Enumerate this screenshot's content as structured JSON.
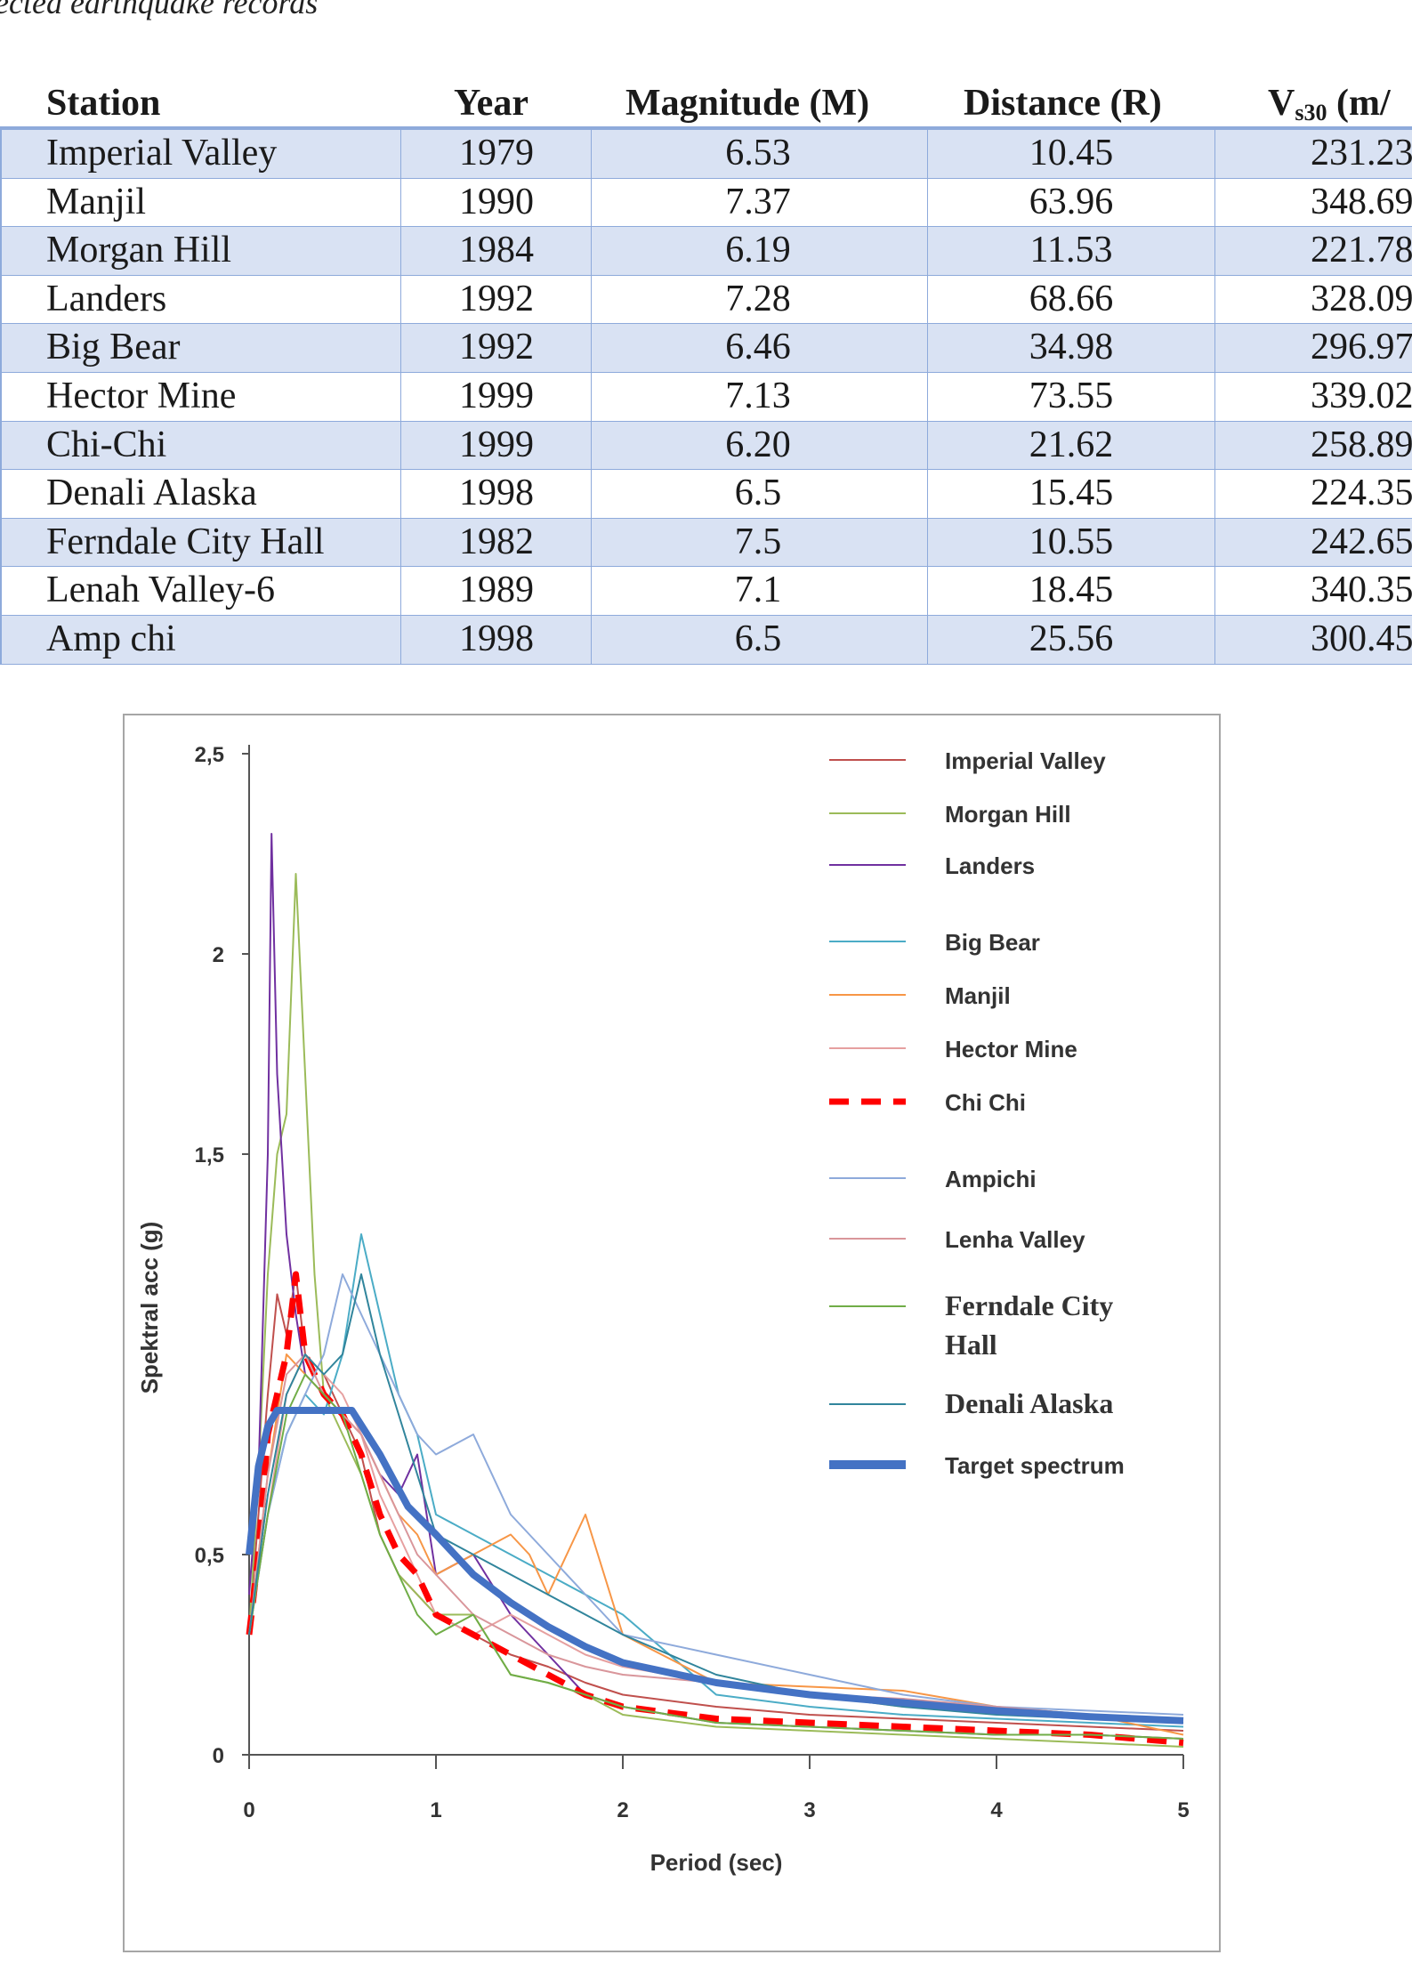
{
  "caption": "ected earthquake records",
  "table": {
    "headers": {
      "station": "Station",
      "year": "Year",
      "magnitude": "Magnitude (M)",
      "distance": "Distance (R)",
      "vs30_base": "V",
      "vs30_sub": "s30",
      "vs30_unit": "(m/"
    },
    "rows": [
      {
        "station": "Imperial Valley",
        "year": "1979",
        "magnitude": "6.53",
        "distance": "10.45",
        "vs30": "231.23"
      },
      {
        "station": "Manjil",
        "year": "1990",
        "magnitude": "7.37",
        "distance": "63.96",
        "vs30": "348.69"
      },
      {
        "station": "Morgan Hill",
        "year": "1984",
        "magnitude": "6.19",
        "distance": "11.53",
        "vs30": "221.78"
      },
      {
        "station": "Landers",
        "year": "1992",
        "magnitude": "7.28",
        "distance": "68.66",
        "vs30": "328.09"
      },
      {
        "station": "Big Bear",
        "year": "1992",
        "magnitude": "6.46",
        "distance": "34.98",
        "vs30": "296.97"
      },
      {
        "station": "Hector Mine",
        "year": "1999",
        "magnitude": "7.13",
        "distance": "73.55",
        "vs30": "339.02"
      },
      {
        "station": "Chi-Chi",
        "year": "1999",
        "magnitude": "6.20",
        "distance": "21.62",
        "vs30": "258.89"
      },
      {
        "station": "Denali Alaska",
        "year": "1998",
        "magnitude": "6.5",
        "distance": "15.45",
        "vs30": "224.35"
      },
      {
        "station": "Ferndale City Hall",
        "year": "1982",
        "magnitude": "7.5",
        "distance": "10.55",
        "vs30": "242.65"
      },
      {
        "station": "Lenah Valley-6",
        "year": "1989",
        "magnitude": "7.1",
        "distance": "18.45",
        "vs30": "340.35"
      },
      {
        "station": "Amp chi",
        "year": "1998",
        "magnitude": "6.5",
        "distance": "25.56",
        "vs30": "300.45"
      }
    ]
  },
  "chart_data": {
    "type": "line",
    "title": "",
    "xlabel": "Period (sec)",
    "ylabel": "Spektral acc (g)",
    "xlim": [
      0,
      5
    ],
    "ylim": [
      0,
      2.5
    ],
    "x_ticks": [
      "0",
      "1",
      "2",
      "3",
      "4",
      "5"
    ],
    "y_ticks": [
      "0",
      "0,5",
      "1,5",
      "2",
      "2,5"
    ],
    "grid": false,
    "legend_position": "top-right",
    "series": [
      {
        "name": "Imperial Valley",
        "color": "#c0504d",
        "style": "solid",
        "x": [
          0,
          0.05,
          0.1,
          0.15,
          0.2,
          0.25,
          0.3,
          0.4,
          0.5,
          0.6,
          0.7,
          0.8,
          1.0,
          1.2,
          1.4,
          1.6,
          1.8,
          2.0,
          2.5,
          3.0,
          3.5,
          4.0,
          4.5,
          5.0
        ],
        "y": [
          0.3,
          0.6,
          0.9,
          1.15,
          1.05,
          1.2,
          1.0,
          0.95,
          0.85,
          0.75,
          0.55,
          0.45,
          0.35,
          0.3,
          0.25,
          0.22,
          0.18,
          0.15,
          0.12,
          0.1,
          0.09,
          0.08,
          0.07,
          0.06
        ]
      },
      {
        "name": "Morgan Hill",
        "color": "#9bbb59",
        "style": "solid",
        "x": [
          0,
          0.05,
          0.1,
          0.15,
          0.2,
          0.25,
          0.3,
          0.35,
          0.4,
          0.5,
          0.6,
          0.7,
          0.8,
          0.9,
          1.0,
          1.2,
          1.4,
          1.6,
          1.8,
          2.0,
          2.5,
          3.0,
          3.5,
          4.0,
          4.5,
          5.0
        ],
        "y": [
          0.3,
          0.7,
          1.2,
          1.5,
          1.6,
          2.2,
          1.7,
          1.2,
          0.9,
          0.8,
          0.7,
          0.55,
          0.45,
          0.4,
          0.35,
          0.35,
          0.2,
          0.18,
          0.15,
          0.1,
          0.07,
          0.06,
          0.05,
          0.04,
          0.03,
          0.02
        ]
      },
      {
        "name": "Landers",
        "color": "#7030a0",
        "style": "solid",
        "x": [
          0,
          0.05,
          0.1,
          0.12,
          0.15,
          0.2,
          0.25,
          0.3,
          0.4,
          0.5,
          0.6,
          0.7,
          0.8,
          0.9,
          1.0,
          1.2,
          1.4,
          1.6,
          1.8,
          2.0,
          2.5,
          3.0,
          3.5,
          4.0,
          4.5,
          5.0
        ],
        "y": [
          0.4,
          0.7,
          1.5,
          2.3,
          1.7,
          1.3,
          1.1,
          0.95,
          0.9,
          0.85,
          0.8,
          0.7,
          0.65,
          0.75,
          0.45,
          0.5,
          0.35,
          0.25,
          0.15,
          0.12,
          0.08,
          0.07,
          0.06,
          0.05,
          0.05,
          0.04
        ]
      },
      {
        "name": "Big Bear",
        "color": "#4bacc6",
        "style": "solid",
        "x": [
          0,
          0.1,
          0.2,
          0.3,
          0.4,
          0.5,
          0.6,
          0.7,
          0.8,
          0.9,
          1.0,
          1.2,
          1.4,
          1.6,
          1.8,
          2.0,
          2.5,
          3.0,
          3.5,
          4.0,
          4.5,
          5.0
        ],
        "y": [
          0.3,
          0.6,
          0.8,
          0.9,
          0.85,
          1.0,
          1.3,
          1.1,
          0.9,
          0.8,
          0.6,
          0.55,
          0.5,
          0.45,
          0.4,
          0.35,
          0.15,
          0.12,
          0.1,
          0.09,
          0.08,
          0.07
        ]
      },
      {
        "name": "Manjil",
        "color": "#f79646",
        "style": "solid",
        "x": [
          0,
          0.1,
          0.2,
          0.3,
          0.4,
          0.5,
          0.6,
          0.7,
          0.8,
          0.9,
          1.0,
          1.2,
          1.4,
          1.5,
          1.6,
          1.7,
          1.8,
          1.9,
          2.0,
          2.5,
          3.0,
          3.5,
          4.0,
          4.5,
          5.0
        ],
        "y": [
          0.3,
          0.7,
          1.0,
          0.95,
          0.9,
          0.85,
          0.8,
          0.7,
          0.6,
          0.55,
          0.45,
          0.5,
          0.55,
          0.5,
          0.4,
          0.5,
          0.6,
          0.45,
          0.3,
          0.18,
          0.17,
          0.16,
          0.12,
          0.1,
          0.05
        ]
      },
      {
        "name": "Hector Mine",
        "color": "#e6a0a0",
        "style": "solid",
        "x": [
          0,
          0.1,
          0.2,
          0.3,
          0.4,
          0.5,
          0.6,
          0.7,
          0.8,
          0.9,
          1.0,
          1.2,
          1.4,
          1.6,
          1.8,
          2.0,
          2.5,
          3.0,
          3.5,
          4.0,
          4.5,
          5.0
        ],
        "y": [
          0.3,
          0.6,
          0.9,
          1.0,
          0.95,
          0.9,
          0.8,
          0.65,
          0.55,
          0.45,
          0.35,
          0.3,
          0.35,
          0.3,
          0.25,
          0.22,
          0.18,
          0.15,
          0.12,
          0.11,
          0.1,
          0.09
        ]
      },
      {
        "name": "Chi Chi",
        "color": "#ff0000",
        "style": "dashed",
        "x": [
          0,
          0.05,
          0.1,
          0.15,
          0.2,
          0.25,
          0.3,
          0.35,
          0.4,
          0.5,
          0.6,
          0.7,
          0.8,
          0.9,
          1.0,
          1.2,
          1.4,
          1.6,
          1.8,
          2.0,
          2.5,
          3.0,
          3.5,
          4.0,
          4.5,
          5.0
        ],
        "y": [
          0.3,
          0.5,
          0.8,
          0.9,
          1.0,
          1.2,
          1.0,
          0.95,
          0.9,
          0.85,
          0.75,
          0.6,
          0.5,
          0.45,
          0.35,
          0.3,
          0.25,
          0.2,
          0.15,
          0.12,
          0.09,
          0.08,
          0.07,
          0.06,
          0.05,
          0.03
        ]
      },
      {
        "name": "Ampichi",
        "color": "#8eaadb",
        "style": "solid",
        "x": [
          0,
          0.1,
          0.2,
          0.3,
          0.4,
          0.5,
          0.6,
          0.7,
          0.8,
          0.9,
          1.0,
          1.2,
          1.4,
          1.6,
          1.8,
          2.0,
          2.5,
          3.0,
          3.5,
          4.0,
          4.5,
          5.0
        ],
        "y": [
          0.3,
          0.6,
          0.8,
          0.9,
          1.0,
          1.2,
          1.1,
          1.0,
          0.9,
          0.8,
          0.75,
          0.8,
          0.6,
          0.5,
          0.4,
          0.3,
          0.25,
          0.2,
          0.15,
          0.12,
          0.11,
          0.1
        ]
      },
      {
        "name": "Lenha Valley",
        "color": "#d9969b",
        "style": "solid",
        "x": [
          0,
          0.1,
          0.2,
          0.3,
          0.4,
          0.5,
          0.6,
          0.7,
          0.8,
          0.9,
          1.0,
          1.2,
          1.4,
          1.6,
          1.8,
          2.0,
          2.5,
          3.0,
          3.5,
          4.0,
          4.5,
          5.0
        ],
        "y": [
          0.3,
          0.7,
          0.95,
          1.0,
          0.9,
          0.85,
          0.8,
          0.7,
          0.6,
          0.5,
          0.45,
          0.35,
          0.3,
          0.25,
          0.22,
          0.2,
          0.18,
          0.15,
          0.14,
          0.12,
          0.1,
          0.08
        ]
      },
      {
        "name": "Ferndale City Hall",
        "color": "#70ad47",
        "style": "solid",
        "x": [
          0,
          0.1,
          0.2,
          0.3,
          0.4,
          0.5,
          0.6,
          0.7,
          0.8,
          0.9,
          1.0,
          1.2,
          1.4,
          1.6,
          1.8,
          2.0,
          2.5,
          3.0,
          3.5,
          4.0,
          4.5,
          5.0
        ],
        "y": [
          0.3,
          0.6,
          0.85,
          0.95,
          0.9,
          0.85,
          0.7,
          0.55,
          0.45,
          0.35,
          0.3,
          0.35,
          0.2,
          0.18,
          0.15,
          0.12,
          0.08,
          0.07,
          0.06,
          0.05,
          0.05,
          0.04
        ]
      },
      {
        "name": "Denali Alaska",
        "color": "#31859c",
        "style": "solid",
        "x": [
          0,
          0.1,
          0.2,
          0.3,
          0.4,
          0.5,
          0.6,
          0.7,
          0.8,
          0.9,
          1.0,
          1.2,
          1.4,
          1.6,
          1.8,
          2.0,
          2.5,
          3.0,
          3.5,
          4.0,
          4.5,
          5.0
        ],
        "y": [
          0.3,
          0.65,
          0.9,
          1.0,
          0.95,
          1.0,
          1.2,
          1.0,
          0.85,
          0.7,
          0.55,
          0.5,
          0.45,
          0.4,
          0.35,
          0.3,
          0.2,
          0.15,
          0.12,
          0.1,
          0.09,
          0.08
        ]
      },
      {
        "name": "Target spectrum",
        "color": "#4472c4",
        "style": "thick",
        "x": [
          0,
          0.05,
          0.1,
          0.15,
          0.55,
          0.7,
          0.85,
          1.0,
          1.2,
          1.4,
          1.6,
          1.8,
          2.0,
          2.5,
          3.0,
          3.5,
          4.0,
          4.5,
          5.0
        ],
        "y": [
          0.5,
          0.72,
          0.82,
          0.86,
          0.86,
          0.75,
          0.62,
          0.55,
          0.45,
          0.38,
          0.32,
          0.27,
          0.23,
          0.18,
          0.15,
          0.13,
          0.11,
          0.095,
          0.085
        ]
      }
    ]
  }
}
